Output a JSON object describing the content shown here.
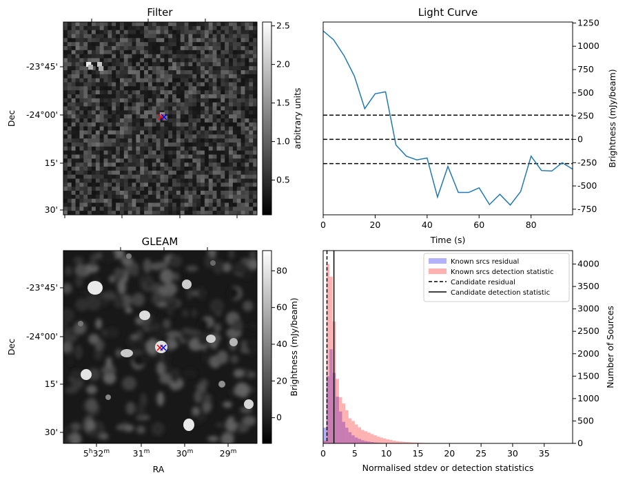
{
  "chart_data": [
    {
      "type": "heatmap",
      "title": "Filter",
      "ylabel": "Dec",
      "yticks": [
        "-23°45'",
        "-24°00'",
        "15'",
        "30'"
      ],
      "colorbar": {
        "label": "arbitrary units",
        "ticks": [
          "0.5",
          "1.0",
          "1.5",
          "2.0",
          "2.5"
        ],
        "range": [
          0.05,
          2.55
        ]
      },
      "colormap": "gray",
      "markers": [
        {
          "symbol": "x",
          "color": "#ff0000"
        },
        {
          "symbol": "x",
          "color": "#0000ff"
        }
      ]
    },
    {
      "type": "line",
      "title": "Light Curve",
      "xlabel": "Time (s)",
      "ylabel": "Brightness (mJy/beam)",
      "xticks": [
        "0",
        "20",
        "40",
        "60",
        "80"
      ],
      "yticks": [
        "-750",
        "-500",
        "-250",
        "0",
        "250",
        "500",
        "750",
        "1000",
        "1250"
      ],
      "xlim": [
        0,
        96
      ],
      "ylim": [
        -810,
        1260
      ],
      "x": [
        0,
        4,
        8,
        12,
        16,
        20,
        24,
        28,
        32,
        36,
        40,
        44,
        48,
        52,
        56,
        60,
        64,
        68,
        72,
        76,
        80,
        84,
        88,
        92,
        96
      ],
      "y": [
        1165,
        1070,
        900,
        680,
        330,
        490,
        510,
        -60,
        -180,
        -220,
        -200,
        -620,
        -290,
        -570,
        -570,
        -520,
        -700,
        -590,
        -705,
        -560,
        -180,
        -335,
        -340,
        -250,
        -320
      ],
      "series_color": "#1f77b4",
      "hlines": [
        260,
        0,
        -260
      ],
      "hline_style": "dashed",
      "yaxis_side": "right"
    },
    {
      "type": "heatmap",
      "title": "GLEAM",
      "xlabel": "RA",
      "ylabel": "Dec",
      "xticks": [
        {
          "main": "5",
          "sup1": "h",
          "mid": "32",
          "sup2": "m"
        },
        {
          "main": "31",
          "sup1": "",
          "mid": "",
          "sup2": "m"
        },
        {
          "main": "30",
          "sup1": "",
          "mid": "",
          "sup2": "m"
        },
        {
          "main": "29",
          "sup1": "",
          "mid": "",
          "sup2": "m"
        }
      ],
      "yticks": [
        "-23°45'",
        "-24°00'",
        "15'",
        "30'"
      ],
      "colorbar": {
        "label": "Brightness (mJy/beam)",
        "ticks": [
          "0",
          "20",
          "40",
          "60",
          "80"
        ],
        "range": [
          -14,
          91
        ]
      },
      "colormap": "gray",
      "markers": [
        {
          "symbol": "x",
          "color": "#ff0000"
        },
        {
          "symbol": "x",
          "color": "#0000ff"
        }
      ]
    },
    {
      "type": "bar",
      "subtype": "histogram",
      "xlabel": "Normalised stdev or detection statistics",
      "ylabel": "Number of Sources",
      "xticks": [
        "0",
        "5",
        "10",
        "15",
        "20",
        "25",
        "30",
        "35"
      ],
      "yticks": [
        "0",
        "500",
        "1000",
        "1500",
        "2000",
        "2500",
        "3000",
        "3500",
        "4000"
      ],
      "xlim": [
        0,
        39.5
      ],
      "ylim": [
        0,
        4300
      ],
      "legend_position": "top-right",
      "legend": [
        "Known srcs residual",
        "Known srcs detection statistic",
        "Candidate residual",
        "Candidate detection statistic"
      ],
      "bin_width": 0.5,
      "series": [
        {
          "name": "Known srcs residual",
          "color": "#0000ff",
          "alpha": 0.3,
          "bin_start": 0,
          "values": [
            350,
            1500,
            2100,
            1570,
            1040,
            710,
            480,
            350,
            250,
            180,
            130,
            100,
            70,
            50,
            40,
            30,
            20,
            15,
            10,
            8
          ]
        },
        {
          "name": "Known srcs detection statistic",
          "color": "#ff0000",
          "alpha": 0.3,
          "bin_start": 0,
          "values": [
            60,
            4000,
            3720,
            2720,
            1440,
            1030,
            890,
            740,
            560,
            500,
            420,
            360,
            300,
            270,
            240,
            210,
            180,
            150,
            130,
            110,
            90,
            75,
            60,
            50,
            42,
            36,
            30,
            25,
            20,
            18,
            15,
            12,
            10,
            9,
            8,
            7,
            6,
            5,
            5,
            4,
            4,
            3,
            3,
            3,
            2,
            2,
            2,
            2,
            2,
            2,
            2,
            1,
            1,
            1,
            1,
            1,
            1,
            1,
            1,
            1,
            1,
            1,
            1,
            1,
            1,
            1,
            1,
            1,
            1,
            1,
            1,
            1,
            1,
            1,
            1,
            1
          ]
        }
      ],
      "vlines": [
        {
          "name": "Candidate residual",
          "x": 0.6,
          "style": "dashed"
        },
        {
          "name": "Candidate detection statistic",
          "x": 1.7,
          "style": "solid"
        }
      ]
    }
  ]
}
